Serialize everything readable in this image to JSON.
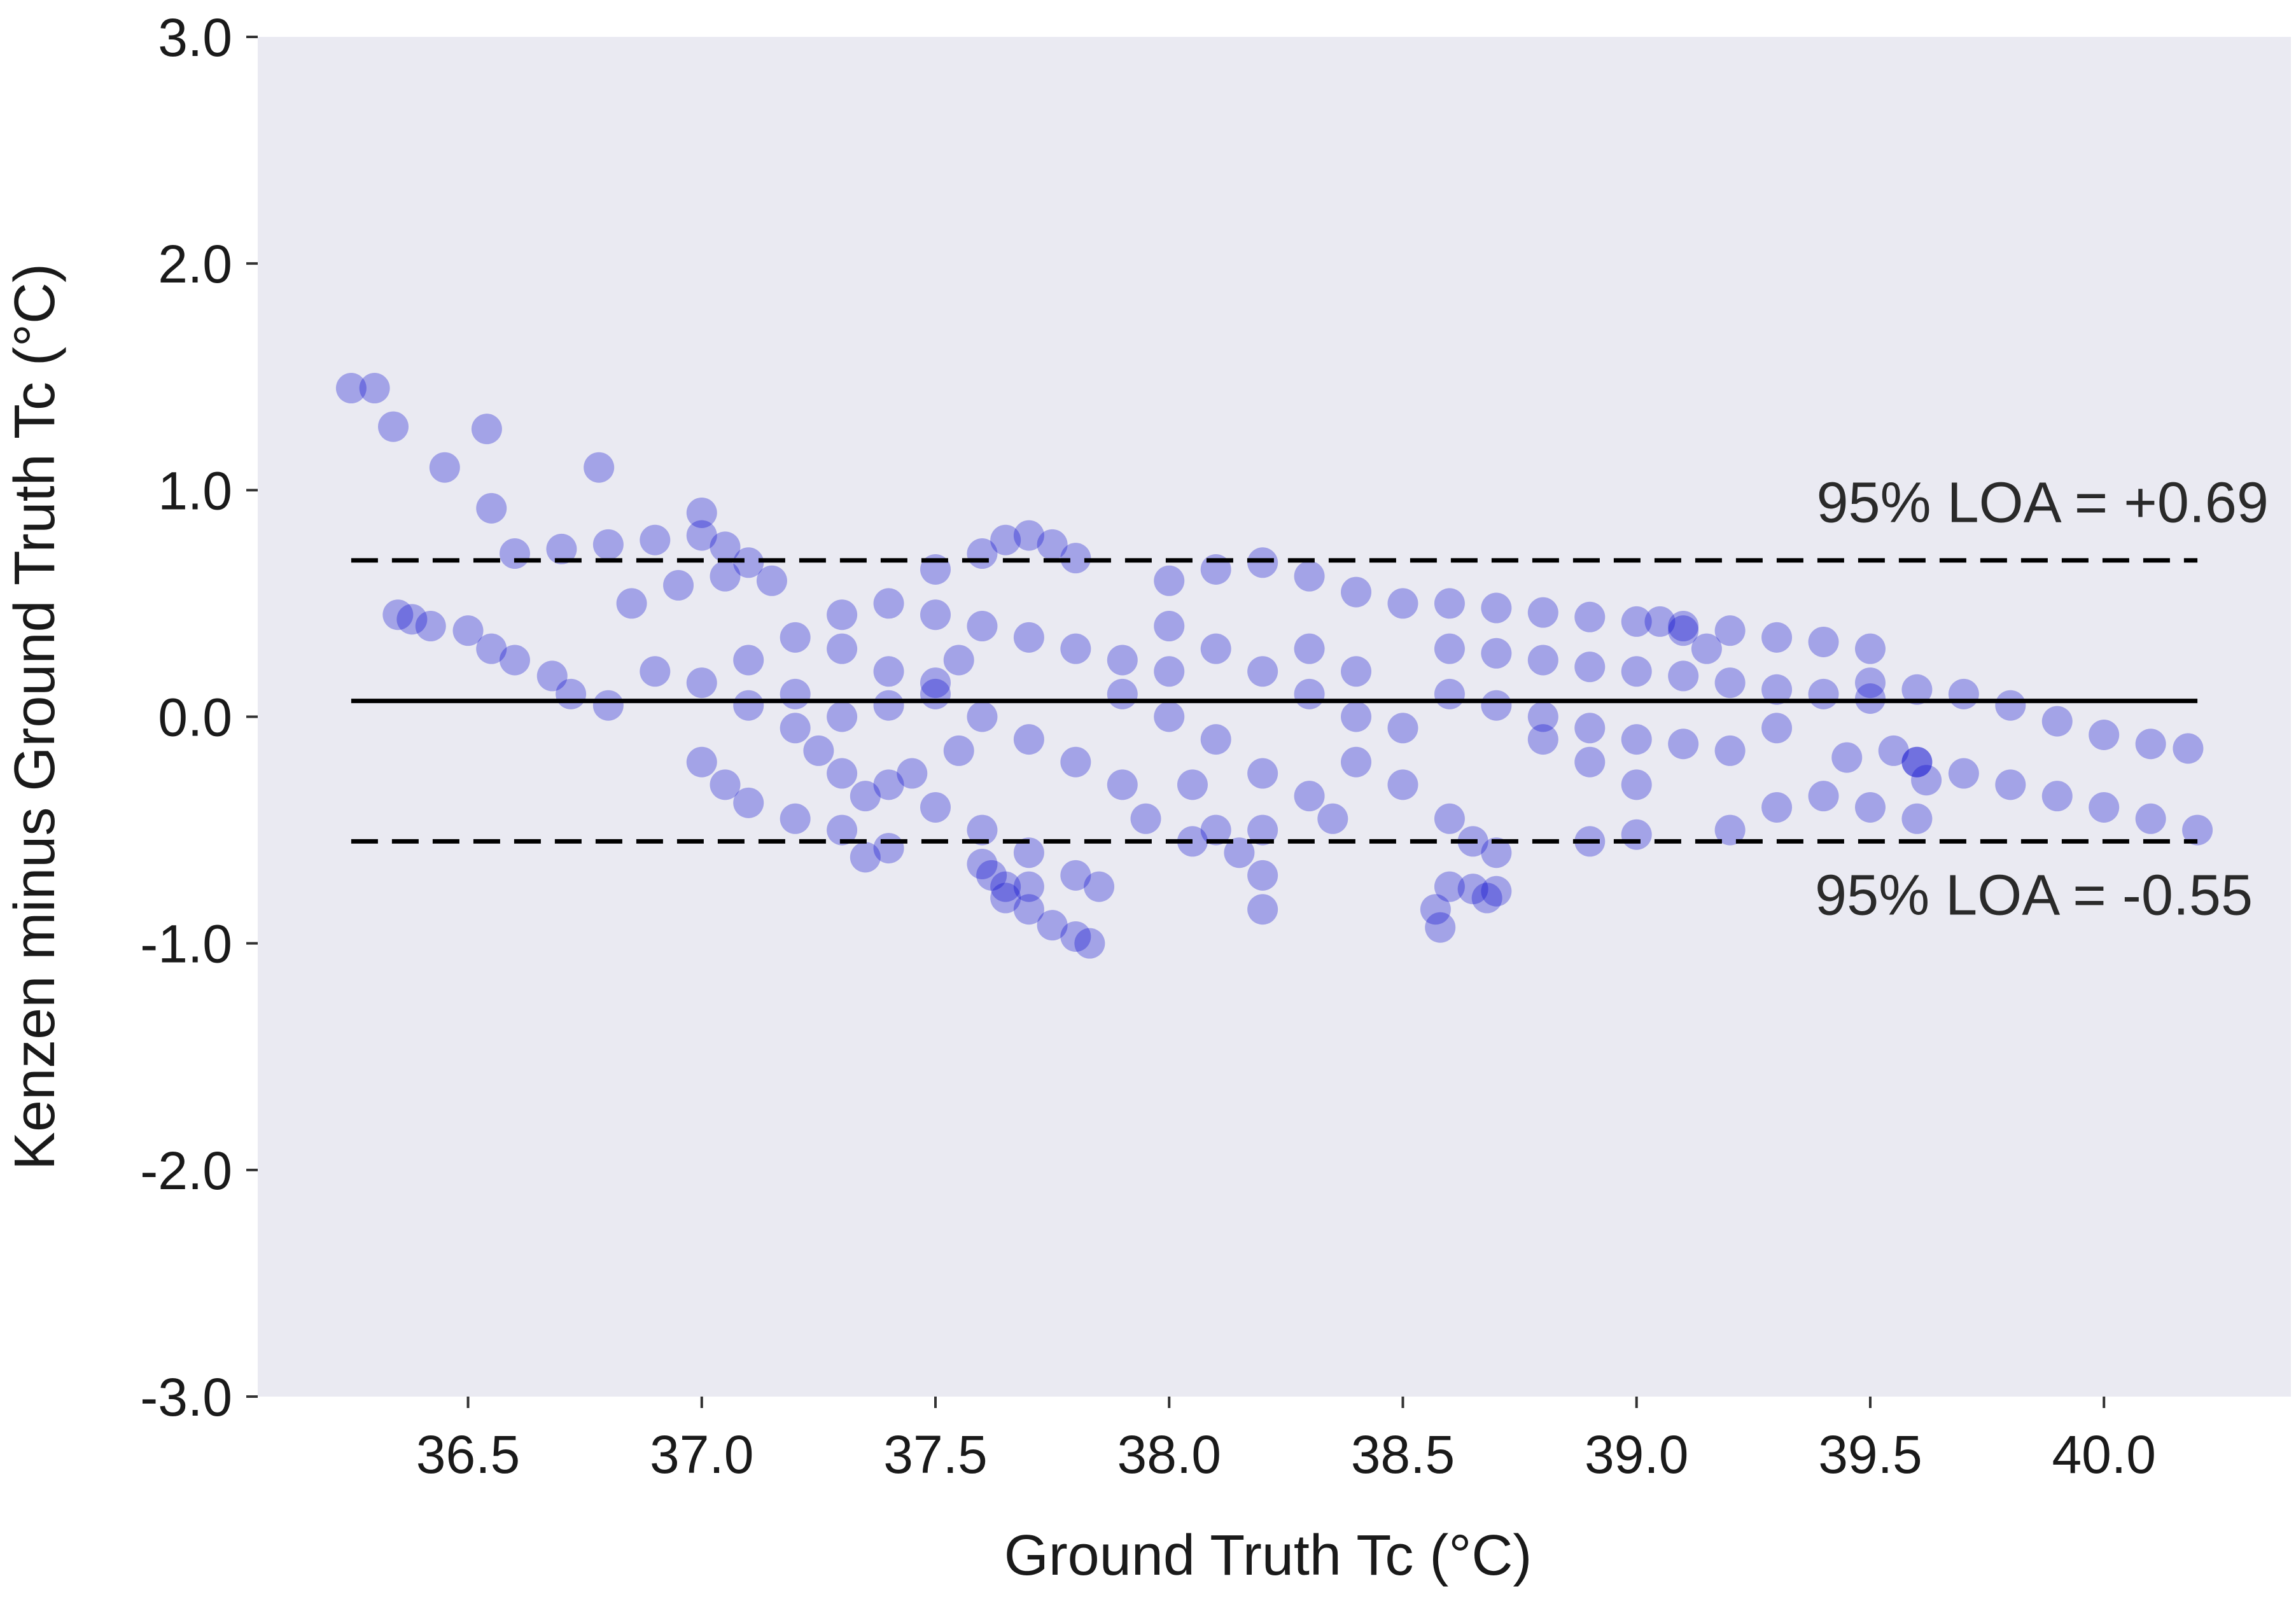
{
  "chart_data": {
    "type": "scatter",
    "title": "",
    "xlabel": "Ground Truth Tc (°C)",
    "ylabel": "Kenzen minus Ground Truth Tc (°C)",
    "xlim": [
      36.05,
      40.4
    ],
    "ylim": [
      -3.0,
      3.0
    ],
    "x_ticks": [
      "36.5",
      "37.0",
      "37.5",
      "38.0",
      "38.5",
      "39.0",
      "39.5",
      "40.0"
    ],
    "y_ticks": [
      "3.0",
      "2.0",
      "1.0",
      "0.0",
      "-1.0",
      "-2.0",
      "-3.0"
    ],
    "grid": false,
    "background_color": "#eaeaf2",
    "point_color": "#0000cd",
    "point_opacity": 0.3,
    "mean_bias": 0.07,
    "upper_loa": 0.69,
    "lower_loa": -0.55,
    "annotations": {
      "upper": "95% LOA = +0.69",
      "lower": "95% LOA = -0.55"
    },
    "series": [
      {
        "points": [
          [
            36.25,
            1.45
          ],
          [
            36.3,
            1.45
          ],
          [
            36.34,
            1.28
          ],
          [
            36.54,
            1.27
          ],
          [
            36.45,
            1.1
          ],
          [
            36.78,
            1.1
          ],
          [
            36.55,
            0.92
          ],
          [
            36.35,
            0.45
          ],
          [
            36.38,
            0.43
          ],
          [
            36.42,
            0.4
          ],
          [
            36.5,
            0.38
          ],
          [
            36.55,
            0.3
          ],
          [
            36.6,
            0.25
          ],
          [
            36.68,
            0.18
          ],
          [
            36.72,
            0.1
          ],
          [
            36.8,
            0.05
          ],
          [
            36.6,
            0.72
          ],
          [
            36.7,
            0.74
          ],
          [
            36.8,
            0.76
          ],
          [
            36.9,
            0.78
          ],
          [
            37.0,
            0.8
          ],
          [
            37.05,
            0.75
          ],
          [
            37.1,
            0.68
          ],
          [
            37.15,
            0.6
          ],
          [
            37.0,
            0.9
          ],
          [
            36.85,
            0.5
          ],
          [
            36.95,
            0.58
          ],
          [
            37.05,
            0.62
          ],
          [
            36.9,
            0.2
          ],
          [
            37.0,
            0.15
          ],
          [
            37.1,
            0.05
          ],
          [
            37.2,
            -0.05
          ],
          [
            37.25,
            -0.15
          ],
          [
            37.3,
            -0.25
          ],
          [
            37.0,
            -0.2
          ],
          [
            37.05,
            -0.3
          ],
          [
            37.1,
            -0.38
          ],
          [
            37.2,
            -0.45
          ],
          [
            37.3,
            -0.5
          ],
          [
            37.4,
            -0.58
          ],
          [
            37.35,
            -0.62
          ],
          [
            37.5,
            0.65
          ],
          [
            37.6,
            0.72
          ],
          [
            37.65,
            0.78
          ],
          [
            37.7,
            0.8
          ],
          [
            37.75,
            0.76
          ],
          [
            37.8,
            0.7
          ],
          [
            37.4,
            0.5
          ],
          [
            37.5,
            0.45
          ],
          [
            37.6,
            0.4
          ],
          [
            37.7,
            0.35
          ],
          [
            37.8,
            0.3
          ],
          [
            37.9,
            0.25
          ],
          [
            37.3,
            0.3
          ],
          [
            37.4,
            0.2
          ],
          [
            37.5,
            0.1
          ],
          [
            37.6,
            0.0
          ],
          [
            37.7,
            -0.1
          ],
          [
            37.8,
            -0.2
          ],
          [
            37.9,
            -0.3
          ],
          [
            37.4,
            -0.3
          ],
          [
            37.5,
            -0.4
          ],
          [
            37.6,
            -0.5
          ],
          [
            37.7,
            -0.6
          ],
          [
            37.8,
            -0.7
          ],
          [
            37.85,
            -0.75
          ],
          [
            37.6,
            -0.65
          ],
          [
            37.62,
            -0.7
          ],
          [
            37.65,
            -0.75
          ],
          [
            37.7,
            -0.85
          ],
          [
            37.75,
            -0.92
          ],
          [
            37.8,
            -0.97
          ],
          [
            37.83,
            -1.0
          ],
          [
            37.65,
            -0.8
          ],
          [
            37.7,
            -0.75
          ],
          [
            38.0,
            0.6
          ],
          [
            38.1,
            0.65
          ],
          [
            38.2,
            0.68
          ],
          [
            38.3,
            0.62
          ],
          [
            38.4,
            0.55
          ],
          [
            38.5,
            0.5
          ],
          [
            38.0,
            0.4
          ],
          [
            38.1,
            0.3
          ],
          [
            38.2,
            0.2
          ],
          [
            38.3,
            0.1
          ],
          [
            38.4,
            0.0
          ],
          [
            38.5,
            -0.05
          ],
          [
            38.0,
            0.0
          ],
          [
            38.1,
            -0.1
          ],
          [
            38.2,
            -0.25
          ],
          [
            38.2,
            -0.5
          ],
          [
            38.2,
            -0.7
          ],
          [
            38.2,
            -0.85
          ],
          [
            38.05,
            -0.3
          ],
          [
            38.1,
            -0.5
          ],
          [
            38.15,
            -0.6
          ],
          [
            38.4,
            -0.2
          ],
          [
            38.5,
            -0.3
          ],
          [
            38.6,
            -0.45
          ],
          [
            38.65,
            -0.55
          ],
          [
            38.7,
            -0.6
          ],
          [
            38.57,
            -0.85
          ],
          [
            38.58,
            -0.93
          ],
          [
            38.6,
            -0.75
          ],
          [
            38.65,
            -0.76
          ],
          [
            38.7,
            -0.77
          ],
          [
            38.68,
            -0.8
          ],
          [
            38.6,
            0.5
          ],
          [
            38.7,
            0.48
          ],
          [
            38.8,
            0.46
          ],
          [
            38.9,
            0.44
          ],
          [
            39.0,
            0.42
          ],
          [
            39.1,
            0.4
          ],
          [
            39.2,
            0.38
          ],
          [
            39.3,
            0.35
          ],
          [
            39.4,
            0.33
          ],
          [
            39.5,
            0.3
          ],
          [
            38.6,
            0.3
          ],
          [
            38.7,
            0.28
          ],
          [
            38.8,
            0.25
          ],
          [
            38.9,
            0.22
          ],
          [
            39.0,
            0.2
          ],
          [
            39.1,
            0.18
          ],
          [
            39.2,
            0.15
          ],
          [
            39.3,
            0.12
          ],
          [
            39.4,
            0.1
          ],
          [
            39.5,
            0.08
          ],
          [
            39.5,
            0.15
          ],
          [
            39.6,
            0.12
          ],
          [
            39.7,
            0.1
          ],
          [
            39.8,
            0.05
          ],
          [
            39.9,
            -0.02
          ],
          [
            40.0,
            -0.08
          ],
          [
            40.1,
            -0.12
          ],
          [
            40.18,
            -0.14
          ],
          [
            39.6,
            -0.2
          ],
          [
            39.7,
            -0.25
          ],
          [
            39.8,
            -0.3
          ],
          [
            39.9,
            -0.35
          ],
          [
            40.0,
            -0.4
          ],
          [
            40.1,
            -0.45
          ],
          [
            40.2,
            -0.5
          ],
          [
            39.4,
            -0.35
          ],
          [
            39.5,
            -0.4
          ],
          [
            39.6,
            -0.45
          ],
          [
            38.9,
            -0.55
          ],
          [
            39.0,
            -0.52
          ],
          [
            39.2,
            -0.5
          ],
          [
            39.3,
            -0.4
          ],
          [
            38.8,
            0.0
          ],
          [
            38.9,
            -0.05
          ],
          [
            39.0,
            -0.1
          ],
          [
            39.1,
            -0.12
          ],
          [
            39.2,
            -0.15
          ],
          [
            39.3,
            -0.05
          ],
          [
            39.05,
            0.42
          ],
          [
            39.1,
            0.38
          ],
          [
            39.15,
            0.3
          ],
          [
            39.45,
            -0.18
          ],
          [
            39.55,
            -0.15
          ],
          [
            39.6,
            -0.2
          ],
          [
            39.62,
            -0.28
          ],
          [
            37.2,
            0.1
          ],
          [
            37.3,
            0.0
          ],
          [
            37.4,
            0.05
          ],
          [
            37.5,
            0.15
          ],
          [
            37.55,
            0.25
          ],
          [
            37.9,
            0.1
          ],
          [
            38.0,
            0.2
          ],
          [
            38.3,
            0.3
          ],
          [
            38.4,
            0.2
          ],
          [
            37.1,
            0.25
          ],
          [
            37.2,
            0.35
          ],
          [
            37.3,
            0.45
          ],
          [
            38.6,
            0.1
          ],
          [
            38.7,
            0.05
          ],
          [
            38.8,
            -0.1
          ],
          [
            38.9,
            -0.2
          ],
          [
            39.0,
            -0.3
          ],
          [
            37.35,
            -0.35
          ],
          [
            37.45,
            -0.25
          ],
          [
            37.55,
            -0.15
          ],
          [
            37.95,
            -0.45
          ],
          [
            38.05,
            -0.55
          ],
          [
            38.3,
            -0.35
          ],
          [
            38.35,
            -0.45
          ]
        ]
      }
    ]
  }
}
